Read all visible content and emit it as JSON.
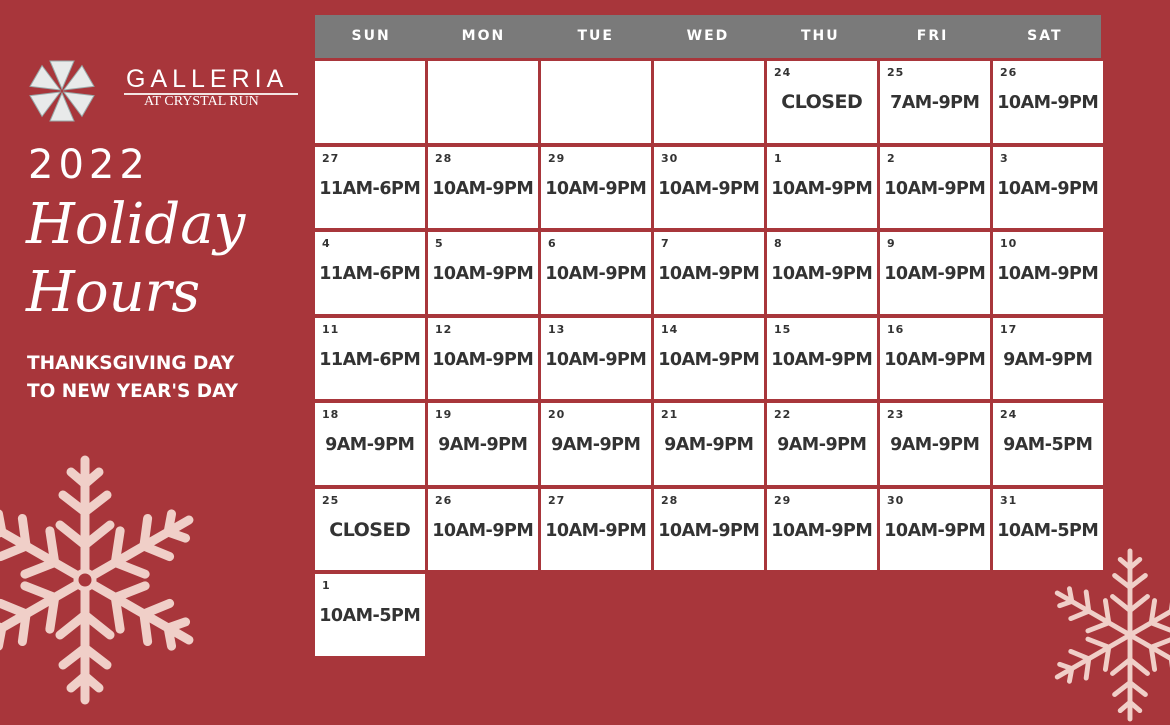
{
  "logo": {
    "name": "GALLERIA",
    "sub": "AT CRYSTAL RUN"
  },
  "title": {
    "year": "2022",
    "line1": "Holiday",
    "line2": "Hours"
  },
  "subtitle": {
    "line1": "THANKSGIVING DAY",
    "line2": "TO NEW YEAR'S DAY"
  },
  "colors": {
    "background": "#a8363b",
    "header": "#7a7a7a",
    "cell": "#ffffff",
    "text": "#333333",
    "snowflake": "#f0cfc8"
  },
  "days": [
    "SUN",
    "MON",
    "TUE",
    "WED",
    "THU",
    "FRI",
    "SAT"
  ],
  "leading_empty": 4,
  "cells": [
    {
      "day": "24",
      "hours": "CLOSED"
    },
    {
      "day": "25",
      "hours": "7AM-9PM"
    },
    {
      "day": "26",
      "hours": "10AM-9PM"
    },
    {
      "day": "27",
      "hours": "11AM-6PM"
    },
    {
      "day": "28",
      "hours": "10AM-9PM"
    },
    {
      "day": "29",
      "hours": "10AM-9PM"
    },
    {
      "day": "30",
      "hours": "10AM-9PM"
    },
    {
      "day": "1",
      "hours": "10AM-9PM"
    },
    {
      "day": "2",
      "hours": "10AM-9PM"
    },
    {
      "day": "3",
      "hours": "10AM-9PM"
    },
    {
      "day": "4",
      "hours": "11AM-6PM"
    },
    {
      "day": "5",
      "hours": "10AM-9PM"
    },
    {
      "day": "6",
      "hours": "10AM-9PM"
    },
    {
      "day": "7",
      "hours": "10AM-9PM"
    },
    {
      "day": "8",
      "hours": "10AM-9PM"
    },
    {
      "day": "9",
      "hours": "10AM-9PM"
    },
    {
      "day": "10",
      "hours": "10AM-9PM"
    },
    {
      "day": "11",
      "hours": "11AM-6PM"
    },
    {
      "day": "12",
      "hours": "10AM-9PM"
    },
    {
      "day": "13",
      "hours": "10AM-9PM"
    },
    {
      "day": "14",
      "hours": "10AM-9PM"
    },
    {
      "day": "15",
      "hours": "10AM-9PM"
    },
    {
      "day": "16",
      "hours": "10AM-9PM"
    },
    {
      "day": "17",
      "hours": "9AM-9PM"
    },
    {
      "day": "18",
      "hours": "9AM-9PM"
    },
    {
      "day": "19",
      "hours": "9AM-9PM"
    },
    {
      "day": "20",
      "hours": "9AM-9PM"
    },
    {
      "day": "21",
      "hours": "9AM-9PM"
    },
    {
      "day": "22",
      "hours": "9AM-9PM"
    },
    {
      "day": "23",
      "hours": "9AM-9PM"
    },
    {
      "day": "24",
      "hours": "9AM-5PM"
    },
    {
      "day": "25",
      "hours": "CLOSED"
    },
    {
      "day": "26",
      "hours": "10AM-9PM"
    },
    {
      "day": "27",
      "hours": "10AM-9PM"
    },
    {
      "day": "28",
      "hours": "10AM-9PM"
    },
    {
      "day": "29",
      "hours": "10AM-9PM"
    },
    {
      "day": "30",
      "hours": "10AM-9PM"
    },
    {
      "day": "31",
      "hours": "10AM-5PM"
    },
    {
      "day": "1",
      "hours": "10AM-5PM"
    }
  ]
}
